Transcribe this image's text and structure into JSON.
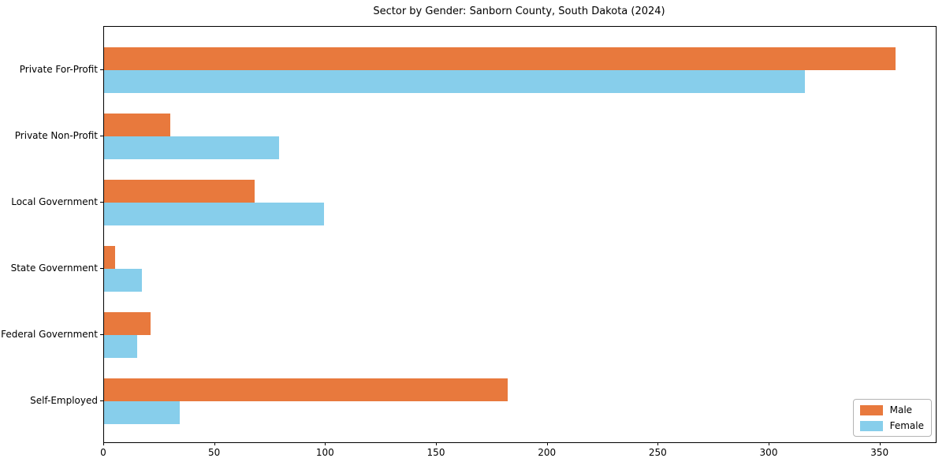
{
  "chart_data": {
    "type": "bar",
    "orientation": "horizontal",
    "title": "Sector by Gender: Sanborn County, South Dakota (2024)",
    "categories": [
      "Private For-Profit",
      "Private Non-Profit",
      "Local Government",
      "State Government",
      "Federal Government",
      "Self-Employed"
    ],
    "series": [
      {
        "name": "Male",
        "color": "#E8793D",
        "values": [
          357,
          30,
          68,
          5,
          21,
          182
        ]
      },
      {
        "name": "Female",
        "color": "#87CEEB",
        "values": [
          316,
          79,
          99,
          17,
          15,
          34
        ]
      }
    ],
    "xlabel": "",
    "ylabel": "",
    "xlim": [
      0,
      375
    ],
    "xticks": [
      0,
      50,
      100,
      150,
      200,
      250,
      300,
      350
    ],
    "grid": false,
    "legend_position": "lower right"
  }
}
